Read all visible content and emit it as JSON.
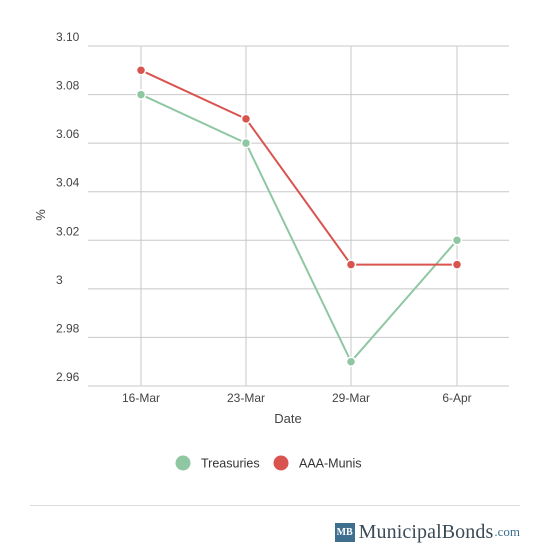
{
  "chart_data": {
    "type": "line",
    "categories": [
      "16-Mar",
      "23-Mar",
      "29-Mar",
      "6-Apr"
    ],
    "series": [
      {
        "name": "Treasuries",
        "color": "#8fc7a3",
        "values": [
          3.08,
          3.06,
          2.97,
          3.02
        ]
      },
      {
        "name": "AAA-Munis",
        "color": "#d9534f",
        "values": [
          3.09,
          3.07,
          3.01,
          3.01
        ]
      }
    ],
    "xlabel": "Date",
    "ylabel": "%",
    "ylim": [
      2.96,
      3.1
    ],
    "yticks": [
      {
        "value": 3.1,
        "label": "3.10"
      },
      {
        "value": 3.08,
        "label": "3.08"
      },
      {
        "value": 3.06,
        "label": "3.06"
      },
      {
        "value": 3.04,
        "label": "3.04"
      },
      {
        "value": 3.02,
        "label": "3.02"
      },
      {
        "value": 3.0,
        "label": "3"
      },
      {
        "value": 2.98,
        "label": "2.98"
      },
      {
        "value": 2.96,
        "label": "2.96"
      }
    ],
    "grid": true,
    "legend_position": "bottom"
  },
  "branding": {
    "badge": "MB",
    "name": "MunicipalBonds",
    "suffix": ".com",
    "badge_color": "#3e6f8f"
  }
}
